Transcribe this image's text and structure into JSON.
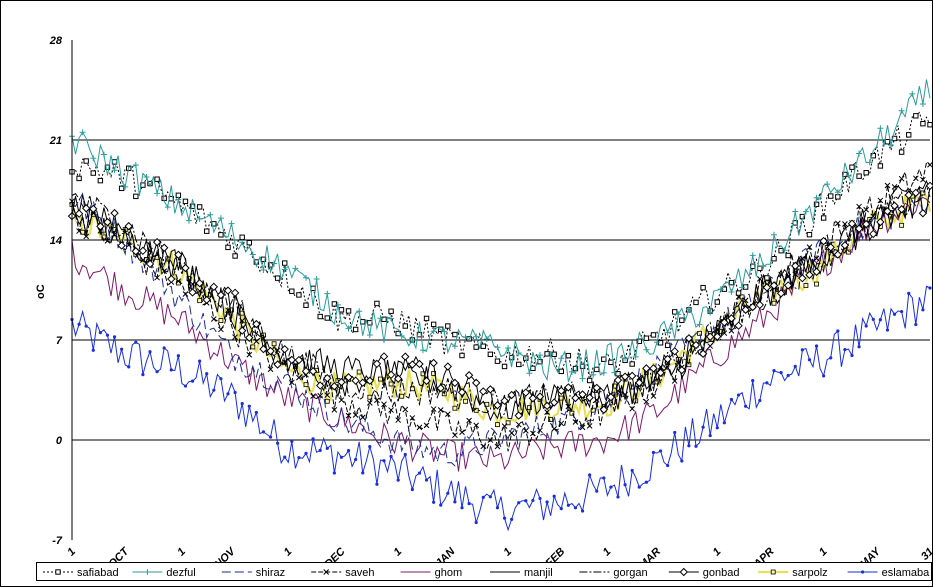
{
  "chart_data": {
    "type": "line",
    "title": "",
    "xlabel": "",
    "ylabel": "oC",
    "ylim": [
      -7,
      28
    ],
    "yticks": [
      28,
      21,
      14,
      7,
      0,
      -7
    ],
    "grid": "horizontal",
    "legend_position": "bottom",
    "x_tick_labels": [
      "1",
      "OCT",
      "1",
      "NOV",
      "1",
      "DEC",
      "1",
      "JAN",
      "1",
      "FEB",
      "1",
      "MAR",
      "1",
      "APR",
      "1",
      "MAY",
      "31"
    ],
    "x_days": {
      "start_label": "1 OCT",
      "end_label": "31 MAY",
      "count": 243
    },
    "series": [
      {
        "name": "safiabad",
        "color": "#000000",
        "dash": "2,2",
        "marker": "square-open",
        "anchors": [
          [
            0,
            19.5
          ],
          [
            20,
            18
          ],
          [
            40,
            15
          ],
          [
            60,
            11.5
          ],
          [
            75,
            8.5
          ],
          [
            90,
            8.5
          ],
          [
            105,
            7
          ],
          [
            120,
            6
          ],
          [
            135,
            6
          ],
          [
            150,
            5
          ],
          [
            165,
            7
          ],
          [
            180,
            10
          ],
          [
            195,
            12
          ],
          [
            210,
            16
          ],
          [
            225,
            19.5
          ],
          [
            242,
            22.5
          ]
        ]
      },
      {
        "name": "dezful",
        "color": "#2e9a9a",
        "dash": "",
        "marker": "plus",
        "anchors": [
          [
            0,
            21
          ],
          [
            20,
            18
          ],
          [
            40,
            15
          ],
          [
            60,
            12
          ],
          [
            75,
            9
          ],
          [
            90,
            7.5
          ],
          [
            105,
            7
          ],
          [
            120,
            6.5
          ],
          [
            135,
            5
          ],
          [
            150,
            5.5
          ],
          [
            165,
            7
          ],
          [
            180,
            9.5
          ],
          [
            195,
            12.5
          ],
          [
            210,
            16.5
          ],
          [
            225,
            20
          ],
          [
            242,
            24.5
          ]
        ]
      },
      {
        "name": "shiraz",
        "color": "#1a2d8c",
        "dash": "9,4",
        "marker": "none",
        "anchors": [
          [
            0,
            17
          ],
          [
            15,
            14
          ],
          [
            30,
            10
          ],
          [
            45,
            6
          ],
          [
            60,
            4
          ],
          [
            75,
            1.5
          ],
          [
            90,
            0
          ],
          [
            105,
            -1
          ],
          [
            120,
            0
          ],
          [
            135,
            1
          ],
          [
            150,
            2.5
          ],
          [
            165,
            5
          ],
          [
            180,
            7.5
          ],
          [
            195,
            10
          ],
          [
            210,
            13
          ],
          [
            225,
            15
          ],
          [
            242,
            17
          ]
        ]
      },
      {
        "name": "saveh",
        "color": "#000000",
        "dash": "5,2",
        "marker": "x",
        "anchors": [
          [
            0,
            16
          ],
          [
            15,
            13.5
          ],
          [
            30,
            11
          ],
          [
            45,
            8
          ],
          [
            60,
            5
          ],
          [
            75,
            3
          ],
          [
            90,
            2
          ],
          [
            105,
            1
          ],
          [
            120,
            0
          ],
          [
            135,
            1
          ],
          [
            150,
            2
          ],
          [
            165,
            4
          ],
          [
            180,
            7.5
          ],
          [
            195,
            10.5
          ],
          [
            210,
            13.5
          ],
          [
            225,
            16
          ],
          [
            242,
            19
          ]
        ]
      },
      {
        "name": "ghom",
        "color": "#7a1a6a",
        "dash": "",
        "marker": "none",
        "anchors": [
          [
            0,
            13
          ],
          [
            15,
            10.5
          ],
          [
            30,
            8.5
          ],
          [
            45,
            5.5
          ],
          [
            60,
            3
          ],
          [
            75,
            1.5
          ],
          [
            90,
            0
          ],
          [
            105,
            -1
          ],
          [
            120,
            -1.5
          ],
          [
            135,
            -0.5
          ],
          [
            150,
            0
          ],
          [
            165,
            2
          ],
          [
            180,
            5.5
          ],
          [
            195,
            8.5
          ],
          [
            210,
            12
          ],
          [
            225,
            15
          ],
          [
            242,
            17
          ]
        ]
      },
      {
        "name": "manjil",
        "color": "#000000",
        "dash": "",
        "marker": "none",
        "anchors": [
          [
            0,
            16
          ],
          [
            15,
            14
          ],
          [
            30,
            12.5
          ],
          [
            45,
            9
          ],
          [
            60,
            6
          ],
          [
            75,
            5
          ],
          [
            90,
            4.5
          ],
          [
            105,
            4
          ],
          [
            120,
            2
          ],
          [
            135,
            3
          ],
          [
            150,
            3
          ],
          [
            165,
            4
          ],
          [
            180,
            7
          ],
          [
            195,
            10.5
          ],
          [
            210,
            12.5
          ],
          [
            225,
            15.5
          ],
          [
            242,
            18
          ]
        ]
      },
      {
        "name": "gorgan",
        "color": "#000000",
        "dash": "8,2,2,2",
        "marker": "none",
        "anchors": [
          [
            0,
            17
          ],
          [
            15,
            15
          ],
          [
            30,
            12
          ],
          [
            45,
            9.5
          ],
          [
            60,
            6
          ],
          [
            75,
            4
          ],
          [
            90,
            3.5
          ],
          [
            105,
            3.5
          ],
          [
            120,
            2.5
          ],
          [
            135,
            3
          ],
          [
            150,
            3
          ],
          [
            165,
            4.5
          ],
          [
            180,
            7.5
          ],
          [
            195,
            10
          ],
          [
            210,
            12.5
          ],
          [
            225,
            15
          ],
          [
            242,
            17.5
          ]
        ]
      },
      {
        "name": "gonbad",
        "color": "#000000",
        "dash": "",
        "marker": "diamond-open",
        "anchors": [
          [
            0,
            16.5
          ],
          [
            15,
            14.5
          ],
          [
            30,
            12
          ],
          [
            45,
            9.5
          ],
          [
            60,
            5.5
          ],
          [
            75,
            4
          ],
          [
            90,
            5
          ],
          [
            105,
            4.5
          ],
          [
            120,
            2.5
          ],
          [
            135,
            3
          ],
          [
            150,
            3
          ],
          [
            165,
            4.5
          ],
          [
            180,
            7.5
          ],
          [
            195,
            10
          ],
          [
            210,
            12.5
          ],
          [
            225,
            15
          ],
          [
            242,
            17
          ]
        ]
      },
      {
        "name": "sarpolz",
        "color": "#e6e05a",
        "dash": "",
        "marker": "square-small",
        "anchors": [
          [
            0,
            15.5
          ],
          [
            15,
            14
          ],
          [
            30,
            12
          ],
          [
            45,
            8.5
          ],
          [
            60,
            5
          ],
          [
            75,
            3.5
          ],
          [
            90,
            4
          ],
          [
            105,
            3.5
          ],
          [
            120,
            2
          ],
          [
            135,
            2.5
          ],
          [
            150,
            2.5
          ],
          [
            165,
            4.5
          ],
          [
            180,
            7.5
          ],
          [
            195,
            10
          ],
          [
            210,
            12
          ],
          [
            225,
            15
          ],
          [
            242,
            17
          ]
        ]
      },
      {
        "name": "eslamaba",
        "color": "#1a2fd8",
        "dash": "",
        "marker": "dot",
        "anchors": [
          [
            0,
            8
          ],
          [
            15,
            6
          ],
          [
            30,
            5
          ],
          [
            45,
            3
          ],
          [
            60,
            -0.5
          ],
          [
            75,
            -1
          ],
          [
            90,
            -2
          ],
          [
            105,
            -3.5
          ],
          [
            120,
            -5
          ],
          [
            135,
            -4.5
          ],
          [
            150,
            -3.5
          ],
          [
            165,
            -1.5
          ],
          [
            180,
            1
          ],
          [
            195,
            4
          ],
          [
            210,
            5.5
          ],
          [
            225,
            7.5
          ],
          [
            242,
            10
          ]
        ]
      }
    ]
  }
}
